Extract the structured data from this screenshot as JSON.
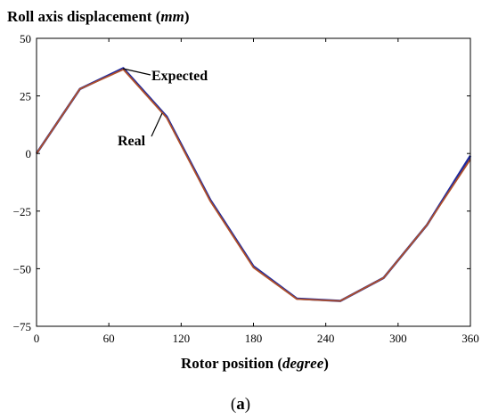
{
  "chart_data": {
    "type": "line",
    "title": "Roll axis displacement",
    "title_unit": "mm",
    "xlabel": "Rotor position",
    "xlabel_unit": "degree",
    "panel_label": "a",
    "xlim": [
      0,
      360
    ],
    "ylim": [
      -75,
      50
    ],
    "xticks": [
      0,
      60,
      120,
      180,
      240,
      300,
      360
    ],
    "yticks": [
      -75,
      -50,
      -25,
      0,
      25,
      50
    ],
    "grid": false,
    "series": [
      {
        "name": "Expected",
        "color": "#1f2a9e",
        "x": [
          0,
          36,
          72,
          108,
          144,
          180,
          216,
          252,
          288,
          324,
          360
        ],
        "y": [
          0,
          28,
          37,
          16,
          -20,
          -49,
          -63,
          -64,
          -54,
          -31,
          -1
        ]
      },
      {
        "name": "Real",
        "color": "#b0502a",
        "x": [
          0,
          36,
          72,
          108,
          144,
          180,
          216,
          252,
          288,
          324,
          360
        ],
        "y": [
          0,
          28,
          36.5,
          15.5,
          -20.5,
          -49.5,
          -63.2,
          -64,
          -54,
          -31,
          -2.5
        ]
      }
    ]
  }
}
